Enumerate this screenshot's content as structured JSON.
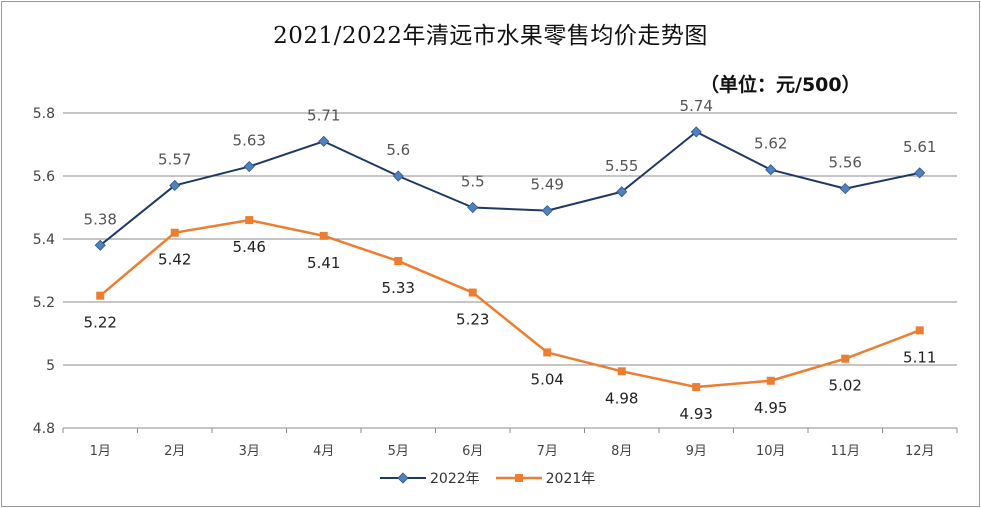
{
  "chart_data": {
    "type": "line",
    "title": "2021/2022年清远市水果零售均价走势图",
    "unit_note": "（单位：元/500）",
    "categories": [
      "1月",
      "2月",
      "3月",
      "4月",
      "5月",
      "6月",
      "7月",
      "8月",
      "9月",
      "10月",
      "11月",
      "12月"
    ],
    "y_ticks": [
      "4.8",
      "5",
      "5.2",
      "5.4",
      "5.6",
      "5.8"
    ],
    "ylim": [
      4.8,
      5.8
    ],
    "grid": true,
    "legend_position": "bottom",
    "series": [
      {
        "name": "2022年",
        "color": "#1f3864",
        "marker": "diamond",
        "marker_color": "#4f81bd",
        "label_position": "above",
        "values": [
          5.38,
          5.57,
          5.63,
          5.71,
          5.6,
          5.5,
          5.49,
          5.55,
          5.74,
          5.62,
          5.56,
          5.61
        ],
        "labels": [
          "5.38",
          "5.57",
          "5.63",
          "5.71",
          "5.6",
          "5.5",
          "5.49",
          "5.55",
          "5.74",
          "5.62",
          "5.56",
          "5.61"
        ]
      },
      {
        "name": "2021年",
        "color": "#ed7d31",
        "marker": "square",
        "marker_color": "#ed7d31",
        "label_position": "below",
        "values": [
          5.22,
          5.42,
          5.46,
          5.41,
          5.33,
          5.23,
          5.04,
          4.98,
          4.93,
          4.95,
          5.02,
          5.11
        ],
        "labels": [
          "5.22",
          "5.42",
          "5.46",
          "5.41",
          "5.33",
          "5.23",
          "5.04",
          "4.98",
          "4.93",
          "4.95",
          "5.02",
          "5.11"
        ]
      }
    ]
  }
}
